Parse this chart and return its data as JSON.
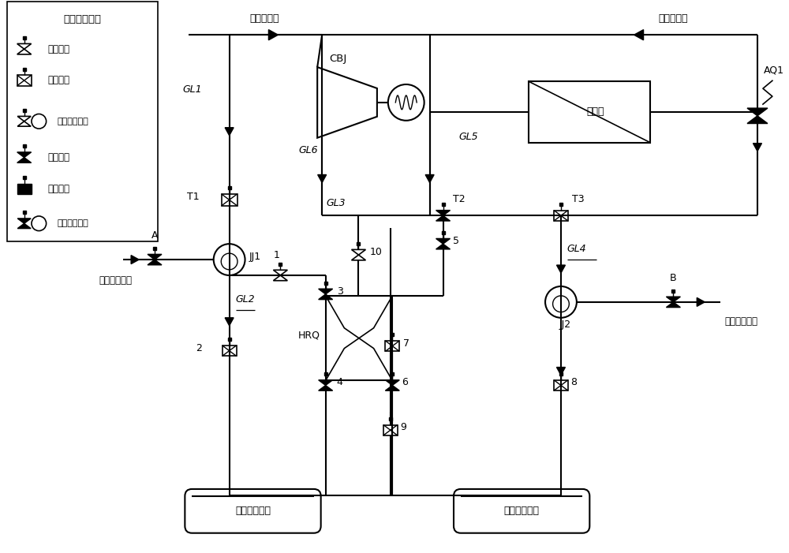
{
  "bg_color": "#ffffff",
  "line_color": "#000000",
  "legend_title": "阀门状态说明",
  "legend_items": [
    "截止阀开",
    "调节阀开",
    "减温减压器开",
    "截止阀关",
    "调节阀关",
    "减温减压器关"
  ],
  "labels": {
    "main_steam": "主汽蒸汽来",
    "reheat_steam": "热再蒸汽来",
    "reheat_water_a": "再热减温水来",
    "reheat_water_b": "再热减温水来",
    "hp_tank": "高压供热联箱",
    "mp_tank": "中压供热联箱",
    "zhongya": "中压缸",
    "hrq": "HRQ",
    "cbj": "CBJ",
    "GL1": "GL1",
    "GL2": "GL2",
    "GL3": "GL3",
    "GL4": "GL4",
    "GL5": "GL5",
    "GL6": "GL6",
    "T1": "T1",
    "T2": "T2",
    "T3": "T3",
    "JJ1": "JJ1",
    "JJ2": "JJ2",
    "A": "A",
    "B": "B",
    "AQ1": "AQ1"
  }
}
